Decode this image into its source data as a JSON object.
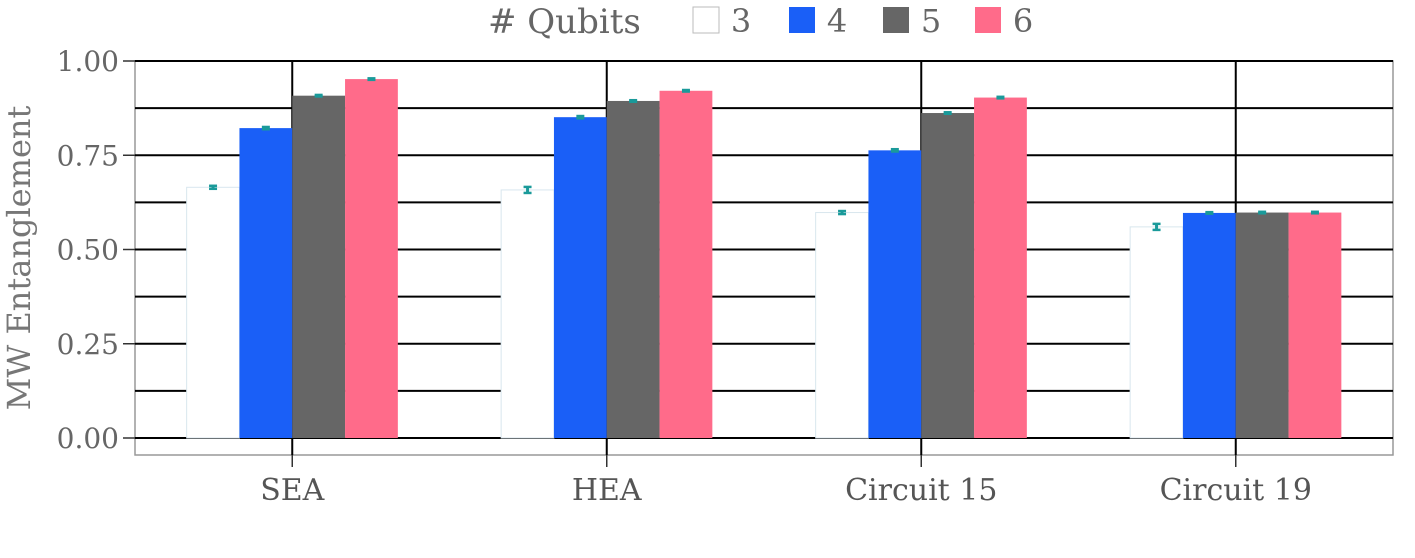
{
  "chart_data": {
    "type": "bar",
    "categories": [
      "SEA",
      "HEA",
      "Circuit 15",
      "Circuit 19"
    ],
    "legend_title": "# Qubits",
    "series": [
      {
        "name": "3",
        "values": [
          0.665,
          0.658,
          0.598,
          0.56
        ],
        "errors": [
          0.004,
          0.008,
          0.004,
          0.008
        ]
      },
      {
        "name": "4",
        "values": [
          0.822,
          0.851,
          0.763,
          0.597
        ],
        "errors": [
          0.003,
          0.003,
          0.003,
          0.002
        ]
      },
      {
        "name": "5",
        "values": [
          0.908,
          0.894,
          0.862,
          0.598
        ],
        "errors": [
          0.002,
          0.002,
          0.002,
          0.002
        ]
      },
      {
        "name": "6",
        "values": [
          0.952,
          0.921,
          0.903,
          0.598
        ],
        "errors": [
          0.002,
          0.002,
          0.002,
          0.002
        ]
      }
    ],
    "colors": [
      "#ffffff",
      "#1a5ff7",
      "#666666",
      "#ff6b8a"
    ],
    "error_color": "#1a9a9a",
    "ylabel": "MW Entanglement",
    "xlabel": "",
    "ylim": [
      0,
      1
    ],
    "yticks": [
      "0.00",
      "0.25",
      "0.50",
      "0.75",
      "1.00"
    ],
    "grid": true,
    "legend_position": "top"
  }
}
